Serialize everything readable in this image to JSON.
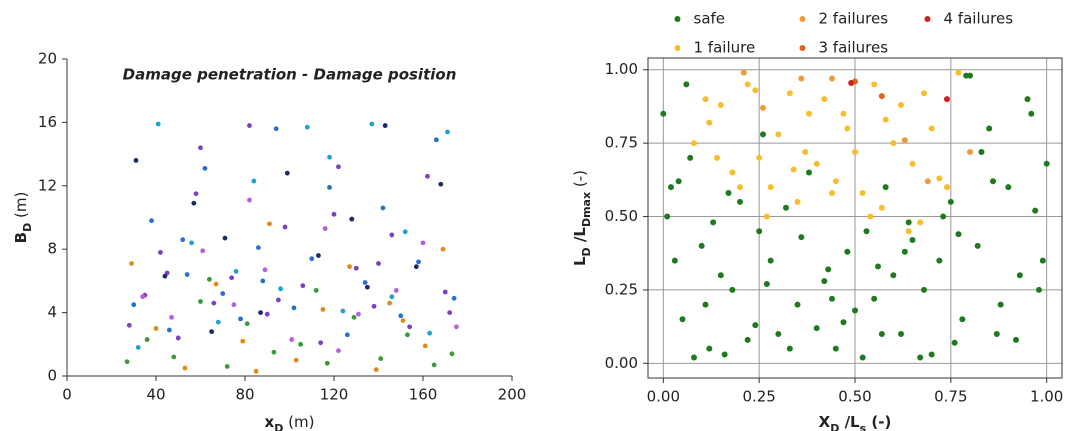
{
  "chart_data": [
    {
      "type": "scatter",
      "title": "Damage penetration - Damage position",
      "xlabel": [
        {
          "text": "x",
          "bold": true
        },
        {
          "text": "D",
          "bold": true,
          "sub": true
        },
        {
          "text": " (m)"
        }
      ],
      "ylabel": [
        {
          "text": "B",
          "bold": true
        },
        {
          "text": "D",
          "bold": true,
          "sub": true
        },
        {
          "text": " (m)"
        }
      ],
      "xlim": [
        0,
        200
      ],
      "ylim": [
        0,
        20
      ],
      "xticks": [
        0,
        40,
        80,
        120,
        160,
        200
      ],
      "yticks": [
        0,
        4,
        8,
        12,
        16,
        20
      ],
      "grid": false,
      "frame": "axes",
      "series": [
        {
          "color": "#7b3fbf",
          "x": [
            28,
            35,
            42,
            50,
            58,
            66,
            74,
            82,
            90,
            98,
            106,
            114,
            122,
            130,
            138,
            146,
            154,
            162,
            170,
            45,
            95,
            140,
            60,
            120,
            172
          ],
          "values": [
            3.2,
            5.1,
            7.8,
            2.4,
            11.5,
            4.6,
            6.2,
            15.8,
            3.9,
            9.4,
            5.7,
            2.1,
            13.2,
            6.8,
            4.4,
            8.9,
            3.1,
            12.6,
            5.3,
            6.5,
            4.8,
            7.1,
            14.4,
            10.2,
            4.0
          ]
        },
        {
          "color": "#2a6fc9",
          "x": [
            30,
            38,
            46,
            54,
            62,
            70,
            78,
            86,
            94,
            102,
            110,
            118,
            126,
            134,
            142,
            150,
            158,
            166,
            174,
            88,
            52
          ],
          "values": [
            4.5,
            9.8,
            2.9,
            6.4,
            13.1,
            5.2,
            3.6,
            8.1,
            15.6,
            4.3,
            7.4,
            11.9,
            2.6,
            5.9,
            10.6,
            3.8,
            7.2,
            14.9,
            4.9,
            6.0,
            8.6
          ]
        },
        {
          "color": "#1fa0d0",
          "x": [
            32,
            41,
            56,
            68,
            84,
            96,
            108,
            124,
            137,
            152,
            163,
            171,
            76,
            118,
            146
          ],
          "values": [
            1.8,
            15.9,
            8.4,
            3.4,
            12.3,
            5.5,
            15.7,
            4.1,
            15.9,
            9.1,
            2.7,
            15.4,
            6.6,
            13.8,
            5.0
          ]
        },
        {
          "color": "#3a9a3a",
          "x": [
            27,
            36,
            48,
            60,
            72,
            81,
            93,
            105,
            117,
            129,
            141,
            153,
            165,
            173,
            64,
            112
          ],
          "values": [
            0.9,
            2.3,
            1.2,
            4.7,
            0.6,
            3.3,
            1.5,
            2.0,
            0.8,
            3.7,
            1.1,
            2.6,
            0.7,
            1.4,
            6.1,
            5.4
          ]
        },
        {
          "color": "#e08a1a",
          "x": [
            29,
            40,
            53,
            67,
            79,
            91,
            103,
            115,
            127,
            139,
            151,
            161,
            169,
            85,
            145
          ],
          "values": [
            7.1,
            3.0,
            0.5,
            5.8,
            2.2,
            9.6,
            1.0,
            4.2,
            6.9,
            0.4,
            3.5,
            1.9,
            8.0,
            0.3,
            4.6
          ]
        },
        {
          "color": "#1a2a6a",
          "x": [
            31,
            44,
            57,
            71,
            87,
            99,
            113,
            128,
            143,
            157,
            168,
            65,
            135
          ],
          "values": [
            13.6,
            6.3,
            10.9,
            8.7,
            4.0,
            12.8,
            7.6,
            9.9,
            15.8,
            6.9,
            12.1,
            2.8,
            5.6
          ]
        },
        {
          "color": "#b060e0",
          "x": [
            34,
            47,
            61,
            75,
            89,
            101,
            116,
            131,
            148,
            160,
            175,
            82,
            122
          ],
          "values": [
            5.0,
            3.7,
            7.9,
            4.5,
            6.7,
            2.3,
            9.3,
            3.9,
            5.4,
            8.4,
            3.1,
            11.1,
            1.6
          ]
        }
      ]
    },
    {
      "type": "scatter",
      "xlabel": [
        {
          "text": "X",
          "bold": true
        },
        {
          "text": "D",
          "bold": true,
          "sub": true
        },
        {
          "text": " /L",
          "bold": true
        },
        {
          "text": "s",
          "bold": true,
          "sub": true
        },
        {
          "text": " (-)",
          "bold": true
        }
      ],
      "ylabel": [
        {
          "text": "L",
          "bold": true
        },
        {
          "text": "D",
          "bold": true,
          "sub": true
        },
        {
          "text": " /L",
          "bold": true
        },
        {
          "text": "Dmax",
          "bold": true,
          "sub": true
        },
        {
          "text": " (-)"
        }
      ],
      "xlim": [
        -0.04,
        1.04
      ],
      "ylim": [
        -0.05,
        1.04
      ],
      "xticks": [
        {
          "value": 0,
          "label": "0.00"
        },
        {
          "value": 0.25,
          "label": "0.25"
        },
        {
          "value": 0.5,
          "label": "0.50"
        },
        {
          "value": 0.75,
          "label": "0.75"
        },
        {
          "value": 1,
          "label": "1.00"
        }
      ],
      "yticks": [
        {
          "value": 0,
          "label": "0.00"
        },
        {
          "value": 0.25,
          "label": "0.25"
        },
        {
          "value": 0.5,
          "label": "0.50"
        },
        {
          "value": 0.75,
          "label": "0.75"
        },
        {
          "value": 1,
          "label": "1.00"
        }
      ],
      "grid": true,
      "frame": "box",
      "legend": "top",
      "series": [
        {
          "name": "safe",
          "color": "#1f7a1f",
          "x": [
            0.0,
            0.02,
            0.05,
            0.08,
            0.1,
            0.12,
            0.15,
            0.18,
            0.2,
            0.22,
            0.25,
            0.28,
            0.3,
            0.32,
            0.35,
            0.38,
            0.4,
            0.42,
            0.45,
            0.48,
            0.5,
            0.52,
            0.55,
            0.58,
            0.6,
            0.62,
            0.65,
            0.68,
            0.7,
            0.72,
            0.75,
            0.78,
            0.8,
            0.82,
            0.85,
            0.88,
            0.9,
            0.92,
            0.95,
            0.98,
            1.0,
            0.03,
            0.07,
            0.13,
            0.17,
            0.27,
            0.33,
            0.43,
            0.47,
            0.53,
            0.57,
            0.63,
            0.67,
            0.73,
            0.77,
            0.83,
            0.87,
            0.93,
            0.97,
            0.06,
            0.11,
            0.24,
            0.36,
            0.44,
            0.56,
            0.64,
            0.76,
            0.86,
            0.96,
            0.01,
            0.99,
            0.79,
            0.04,
            0.16,
            0.26
          ],
          "values": [
            0.85,
            0.6,
            0.15,
            0.02,
            0.4,
            0.05,
            0.3,
            0.25,
            0.55,
            0.08,
            0.45,
            0.35,
            0.1,
            0.53,
            0.2,
            0.65,
            0.12,
            0.28,
            0.05,
            0.38,
            0.18,
            0.02,
            0.22,
            0.6,
            0.3,
            0.1,
            0.42,
            0.25,
            0.03,
            0.35,
            0.55,
            0.15,
            0.98,
            0.4,
            0.8,
            0.2,
            0.6,
            0.08,
            0.9,
            0.25,
            0.68,
            0.35,
            0.7,
            0.48,
            0.58,
            0.27,
            0.05,
            0.32,
            0.14,
            0.45,
            0.1,
            0.38,
            0.02,
            0.5,
            0.44,
            0.72,
            0.1,
            0.3,
            0.52,
            0.95,
            0.2,
            0.13,
            0.43,
            0.22,
            0.33,
            0.48,
            0.07,
            0.62,
            0.85,
            0.5,
            0.35,
            0.98,
            0.62,
            0.03,
            0.78
          ]
        },
        {
          "name": "1 failure",
          "color": "#f7bd2e",
          "x": [
            0.08,
            0.12,
            0.15,
            0.18,
            0.22,
            0.25,
            0.28,
            0.3,
            0.33,
            0.35,
            0.38,
            0.4,
            0.42,
            0.45,
            0.48,
            0.5,
            0.52,
            0.55,
            0.58,
            0.6,
            0.62,
            0.65,
            0.68,
            0.7,
            0.72,
            0.11,
            0.2,
            0.27,
            0.37,
            0.47,
            0.57,
            0.67,
            0.77,
            0.14,
            0.24,
            0.34,
            0.44,
            0.54,
            0.64,
            0.74
          ],
          "values": [
            0.75,
            0.82,
            0.88,
            0.65,
            0.95,
            0.7,
            0.6,
            0.78,
            0.92,
            0.55,
            0.85,
            0.68,
            0.9,
            0.62,
            0.8,
            0.72,
            0.58,
            0.95,
            0.83,
            0.75,
            0.88,
            0.68,
            0.92,
            0.8,
            0.63,
            0.9,
            0.6,
            0.5,
            0.72,
            0.85,
            0.53,
            0.48,
            0.99,
            0.7,
            0.93,
            0.66,
            0.58,
            0.5,
            0.45,
            0.6
          ]
        },
        {
          "name": "2 failures",
          "color": "#f09a3a",
          "x": [
            0.21,
            0.36,
            0.44,
            0.63,
            0.8,
            0.26,
            0.69
          ],
          "values": [
            0.99,
            0.97,
            0.97,
            0.76,
            0.72,
            0.87,
            0.62
          ]
        },
        {
          "name": "3 failures",
          "color": "#e0661a",
          "x": [
            0.5,
            0.57
          ],
          "values": [
            0.96,
            0.91
          ]
        },
        {
          "name": "4 failures",
          "color": "#d41f1f",
          "x": [
            0.49,
            0.74
          ],
          "values": [
            0.955,
            0.9
          ]
        }
      ]
    }
  ]
}
